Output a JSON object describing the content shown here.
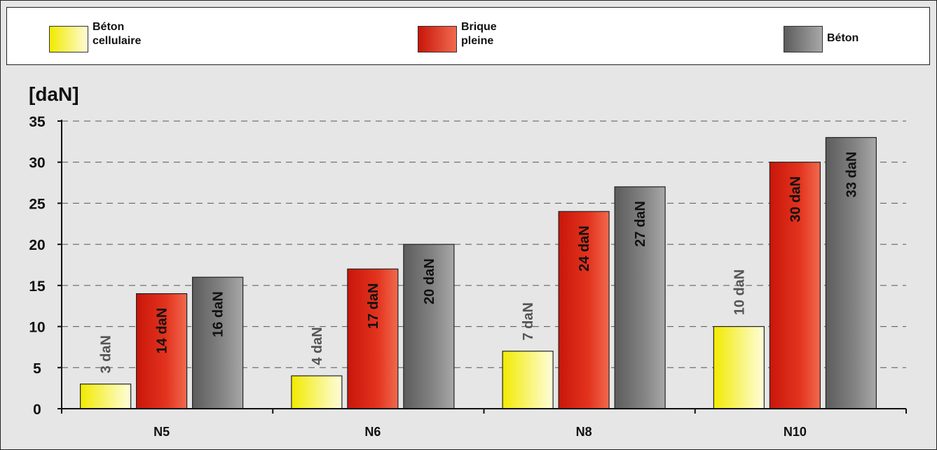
{
  "chart_data": {
    "type": "bar",
    "y_unit_label": "[daN]",
    "categories": [
      "N5",
      "N6",
      "N8",
      "N10"
    ],
    "series": [
      {
        "name": "Béton\ncellulaire",
        "color": "#f7f24a",
        "values": [
          3,
          4,
          7,
          10
        ],
        "labels": [
          "3 daN",
          "4 daN",
          "7 daN",
          "10 daN"
        ],
        "label_color": "#555555"
      },
      {
        "name": "Brique\npleine",
        "color": "#dc2a1c",
        "values": [
          14,
          17,
          24,
          30
        ],
        "labels": [
          "14 daN",
          "17 daN",
          "24 daN",
          "30 daN"
        ],
        "label_color": "#111111"
      },
      {
        "name": "Béton",
        "color": "#808080",
        "values": [
          16,
          20,
          27,
          33
        ],
        "labels": [
          "16 daN",
          "20 daN",
          "27 daN",
          "33 daN"
        ],
        "label_color": "#111111"
      }
    ],
    "y_ticks": [
      0,
      5,
      10,
      15,
      20,
      25,
      30,
      35
    ],
    "ylim": [
      0,
      35
    ],
    "grid": true,
    "legend_position": "top"
  }
}
